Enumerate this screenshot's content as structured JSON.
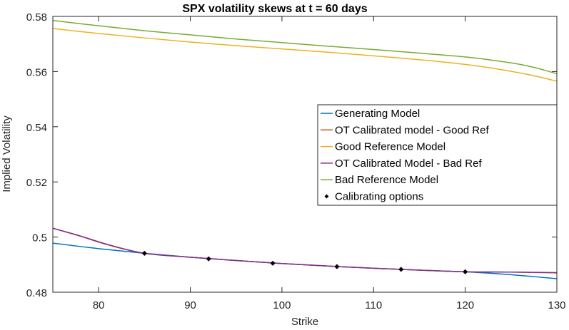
{
  "chart_data": {
    "type": "line",
    "title": "SPX volatility skews at t = 60 days",
    "xlabel": "Strike",
    "ylabel": "Implied Volatility",
    "xlim": [
      75,
      130
    ],
    "ylim": [
      0.48,
      0.58
    ],
    "xticks": [
      80,
      90,
      100,
      110,
      120,
      130
    ],
    "yticks": [
      0.48,
      0.5,
      0.52,
      0.54,
      0.56,
      0.58
    ],
    "xtick_labels": [
      "80",
      "90",
      "100",
      "110",
      "120",
      "130"
    ],
    "ytick_labels": [
      "0.48",
      "0.5",
      "0.52",
      "0.54",
      "0.56",
      "0.58"
    ],
    "grid": false,
    "legend_position": "right-middle",
    "series": [
      {
        "name": "Generating Model",
        "color": "#0072BD",
        "x": [
          75,
          80,
          85,
          90,
          95,
          100,
          105,
          110,
          115,
          120,
          124,
          127,
          130
        ],
        "y": [
          0.4978,
          0.4958,
          0.4941,
          0.4927,
          0.4915,
          0.4904,
          0.4895,
          0.4887,
          0.488,
          0.4874,
          0.4866,
          0.4858,
          0.4849
        ]
      },
      {
        "name": "OT Calibrated model - Good Ref",
        "color": "#D95319",
        "x": [
          75,
          78,
          81,
          85,
          90,
          95,
          100,
          105,
          110,
          115,
          120,
          125,
          130
        ],
        "y": [
          0.5032,
          0.5003,
          0.4972,
          0.4941,
          0.4927,
          0.4915,
          0.4904,
          0.4895,
          0.4887,
          0.488,
          0.4874,
          0.4873,
          0.487
        ]
      },
      {
        "name": "Good Reference Model",
        "color": "#EDB120",
        "x": [
          75,
          80,
          85,
          90,
          95,
          100,
          105,
          110,
          115,
          120,
          123,
          126,
          128,
          130
        ],
        "y": [
          0.5756,
          0.5738,
          0.5722,
          0.5707,
          0.5694,
          0.5682,
          0.567,
          0.5657,
          0.5643,
          0.5626,
          0.5612,
          0.5595,
          0.5581,
          0.5565
        ]
      },
      {
        "name": "OT Calibrated Model - Bad Ref",
        "color": "#7E2F8E",
        "x": [
          75,
          78,
          81,
          85,
          90,
          95,
          100,
          105,
          110,
          115,
          120,
          125,
          130
        ],
        "y": [
          0.5032,
          0.5004,
          0.4973,
          0.4941,
          0.4927,
          0.4915,
          0.4904,
          0.4895,
          0.4887,
          0.488,
          0.4874,
          0.4873,
          0.4871
        ]
      },
      {
        "name": "Bad Reference Model",
        "color": "#77AC30",
        "x": [
          75,
          80,
          85,
          90,
          95,
          100,
          105,
          110,
          115,
          120,
          123,
          126,
          128,
          130
        ],
        "y": [
          0.5785,
          0.5766,
          0.5748,
          0.5733,
          0.5718,
          0.5705,
          0.5692,
          0.568,
          0.5667,
          0.5653,
          0.5641,
          0.5626,
          0.5611,
          0.5592
        ]
      }
    ],
    "markers": {
      "name": "Calibrating options",
      "color": "#000000",
      "x": [
        85,
        92,
        99,
        106,
        113,
        120
      ],
      "y": [
        0.4941,
        0.4921,
        0.4905,
        0.4893,
        0.4883,
        0.4874
      ]
    }
  }
}
